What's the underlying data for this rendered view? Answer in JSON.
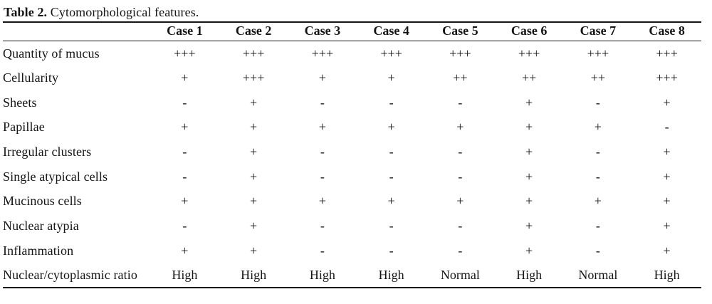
{
  "caption": {
    "label": "Table 2.",
    "text": " Cytomorphological features."
  },
  "table": {
    "corner_header": "",
    "columns": [
      "Case 1",
      "Case 2",
      "Case 3",
      "Case 4",
      "Case 5",
      "Case 6",
      "Case 7",
      "Case 8"
    ],
    "rows": [
      {
        "feature": "Quantity of mucus",
        "values": [
          "+++",
          "+++",
          "+++",
          "+++",
          "+++",
          "+++",
          "+++",
          "+++"
        ]
      },
      {
        "feature": "Cellularity",
        "values": [
          "+",
          "+++",
          "+",
          "+",
          "++",
          "++",
          "++",
          "+++"
        ]
      },
      {
        "feature": "Sheets",
        "values": [
          "-",
          "+",
          "-",
          "-",
          "-",
          "+",
          "-",
          "+"
        ]
      },
      {
        "feature": "Papillae",
        "values": [
          "+",
          "+",
          "+",
          "+",
          "+",
          "+",
          "+",
          "-"
        ]
      },
      {
        "feature": "Irregular clusters",
        "values": [
          "-",
          "+",
          "-",
          "-",
          "-",
          "+",
          "-",
          "+"
        ]
      },
      {
        "feature": "Single atypical cells",
        "values": [
          "-",
          "+",
          "-",
          "-",
          "-",
          "+",
          "-",
          "+"
        ]
      },
      {
        "feature": "Mucinous cells",
        "values": [
          "+",
          "+",
          "+",
          "+",
          "+",
          "+",
          "+",
          "+"
        ]
      },
      {
        "feature": "Nuclear atypia",
        "values": [
          "-",
          "+",
          "-",
          "-",
          "-",
          "+",
          "-",
          "+"
        ]
      },
      {
        "feature": "Inflammation",
        "values": [
          "+",
          "+",
          "-",
          "-",
          "-",
          "+",
          "-",
          "+"
        ]
      },
      {
        "feature": "Nuclear/cytoplasmic ratio",
        "values": [
          "High",
          "High",
          "High",
          "High",
          "Normal",
          "High",
          "Normal",
          "High"
        ]
      }
    ]
  },
  "colors": {
    "text": "#141414",
    "rule": "#141414",
    "background": "#ffffff"
  }
}
